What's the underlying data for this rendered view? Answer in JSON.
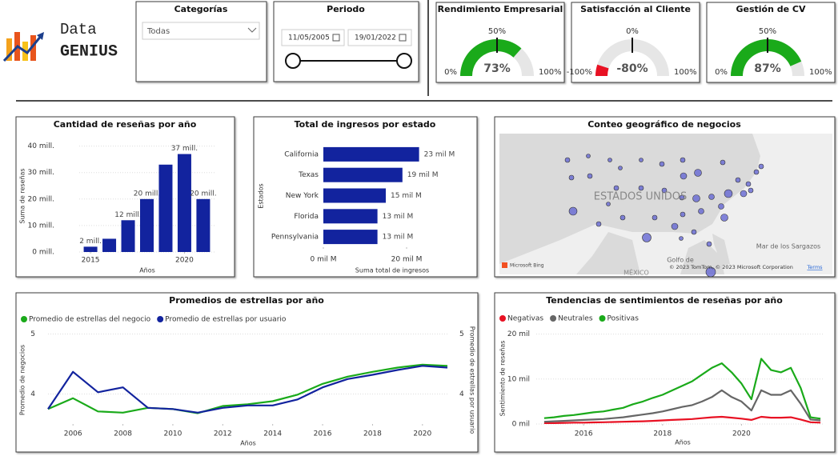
{
  "logo": {
    "line1": "Data",
    "line2": "GENIUS"
  },
  "filters": {
    "category": {
      "title": "Categorías",
      "value": "Todas"
    },
    "period": {
      "title": "Periodo",
      "start": "11/05/2005",
      "end": "19/01/2022"
    }
  },
  "gauges": [
    {
      "title": "Rendimiento Empresarial",
      "value": 73,
      "value_label": "73%",
      "color": "#1aaa1a",
      "min": {
        "value": 0,
        "label": "0%"
      },
      "max": {
        "value": 100,
        "label": "100%"
      },
      "target": {
        "value": 50,
        "label": "50%"
      }
    },
    {
      "title": "Satisfacción al Cliente",
      "value": -80,
      "value_label": "-80%",
      "color": "#e81123",
      "min": {
        "value": -100,
        "label": "-100%"
      },
      "max": {
        "value": 100,
        "label": "100%"
      },
      "target": {
        "value": 0,
        "label": "0%"
      }
    },
    {
      "title": "Gestión de CV",
      "value": 87,
      "value_label": "87%",
      "color": "#1aaa1a",
      "min": {
        "value": 0,
        "label": "0%"
      },
      "max": {
        "value": 100,
        "label": "100%"
      },
      "target": {
        "value": 50,
        "label": "50%"
      }
    }
  ],
  "map": {
    "title": "Conteo geográfico de negocios",
    "country": "ESTADOS UNIDOS",
    "sea": "Mar de los Sargazos",
    "gulf": "Golfo de",
    "mexico": "MÉXICO",
    "provider": "Microsoft Bing",
    "copyright": "© 2023 TomTom, © 2023 Microsoft Corporation",
    "terms": "Terms"
  },
  "chart_data": [
    {
      "type": "bar",
      "title": "Cantidad de reseñas por año",
      "x_label": "Años",
      "y_label": "Suma de reseñas",
      "x": [
        2015,
        2016,
        2017,
        2018,
        2019,
        2020,
        2021
      ],
      "values": [
        2000000,
        5000000,
        12000000,
        20000000,
        33000000,
        37000000,
        20000000
      ],
      "value_labels": [
        "2 mill.",
        null,
        "12 mill.",
        "20 mill.",
        null,
        "37 mill.",
        "20 mill."
      ],
      "color": "#12239e",
      "xlim": [
        2014.4,
        2021.6
      ],
      "xticks": [
        2015,
        2020
      ],
      "ylim": [
        0,
        42000000
      ],
      "yticks": [
        {
          "value": 0,
          "label": "0 mill."
        },
        {
          "value": 10000000,
          "label": "10 mill."
        },
        {
          "value": 20000000,
          "label": "20 mill."
        },
        {
          "value": 30000000,
          "label": "30 mill."
        },
        {
          "value": 40000000,
          "label": "40 mill."
        }
      ],
      "grid": true
    },
    {
      "type": "hbar",
      "title": "Total de ingresos por estado",
      "x_label": "Suma total de ingresos",
      "y_label": "Estados",
      "categories": [
        "California",
        "Texas",
        "New York",
        "Florida",
        "Pennsylvania"
      ],
      "values": [
        23000000000,
        19000000000,
        15000000000,
        13000000000,
        13000000000
      ],
      "value_labels": [
        "23 mil M",
        "19 mil M",
        "15 mil M",
        "13 mil M",
        "13 mil M"
      ],
      "color": "#12239e",
      "xlim": [
        0,
        30000000000
      ],
      "xticks": [
        {
          "value": 0,
          "label": "0 mil M"
        },
        {
          "value": 20000000000,
          "label": "20 mil M"
        }
      ]
    },
    {
      "type": "line",
      "title": "Promedios de estrellas por año",
      "x_label": "Años",
      "y_label": "Promedio de negocios",
      "y2_label": "Promedio de estrellas por usuario",
      "x": [
        2005,
        2006,
        2007,
        2008,
        2009,
        2010,
        2011,
        2012,
        2013,
        2014,
        2015,
        2016,
        2017,
        2018,
        2019,
        2020,
        2021
      ],
      "series": [
        {
          "name": "Promedio de estrellas del negocio",
          "color": "#1aaa1a",
          "values": [
            3.75,
            3.93,
            3.71,
            3.69,
            3.77,
            3.75,
            3.68,
            3.8,
            3.83,
            3.88,
            3.99,
            4.17,
            4.29,
            4.37,
            4.44,
            4.49,
            4.47
          ]
        },
        {
          "name": "Promedio de estrellas por usuario",
          "color": "#12239e",
          "axis": "y2",
          "values": [
            3.75,
            4.37,
            4.03,
            4.11,
            3.77,
            3.75,
            3.69,
            3.77,
            3.81,
            3.81,
            3.91,
            4.11,
            4.25,
            4.32,
            4.4,
            4.47,
            4.44
          ]
        }
      ],
      "xlim": [
        2005,
        2021
      ],
      "xticks": [
        2006,
        2008,
        2010,
        2012,
        2014,
        2016,
        2018,
        2020
      ],
      "ylim": [
        3.5,
        5.1
      ],
      "yticks": [
        4,
        5
      ],
      "y2lim": [
        3.5,
        5.1
      ],
      "y2ticks": [
        4,
        5
      ],
      "grid": true
    },
    {
      "type": "line",
      "title": "Tendencias de sentimientos de reseñas por año",
      "x_label": "Años",
      "y_label": "Sentimiento de reseñas",
      "x": [
        2015,
        2015.25,
        2015.5,
        2015.75,
        2016,
        2016.25,
        2016.5,
        2016.75,
        2017,
        2017.25,
        2017.5,
        2017.75,
        2018,
        2018.25,
        2018.5,
        2018.75,
        2019,
        2019.25,
        2019.5,
        2019.75,
        2020,
        2020.25,
        2020.5,
        2020.75,
        2021,
        2021.25,
        2021.5,
        2021.75,
        2022
      ],
      "series": [
        {
          "name": "Negativas",
          "color": "#e81123",
          "values": [
            200,
            200,
            250,
            300,
            300,
            350,
            400,
            450,
            500,
            550,
            600,
            700,
            800,
            900,
            1000,
            1100,
            1300,
            1500,
            1600,
            1400,
            1200,
            900,
            1600,
            1400,
            1400,
            1500,
            1000,
            400,
            300
          ]
        },
        {
          "name": "Neutrales",
          "color": "#666666",
          "values": [
            500,
            600,
            700,
            800,
            900,
            1000,
            1100,
            1300,
            1500,
            1800,
            2100,
            2400,
            2800,
            3300,
            3800,
            4200,
            5000,
            6000,
            7500,
            6000,
            5000,
            3000,
            7500,
            6500,
            6500,
            7500,
            4500,
            1000,
            800
          ]
        },
        {
          "name": "Positivas",
          "color": "#1aaa1a",
          "values": [
            1300,
            1500,
            1800,
            2000,
            2300,
            2600,
            2800,
            3200,
            3600,
            4400,
            5000,
            5800,
            6500,
            7500,
            8500,
            9500,
            11000,
            12500,
            13500,
            11500,
            9000,
            5500,
            14500,
            12000,
            11500,
            12500,
            8000,
            1500,
            1200
          ]
        }
      ],
      "xlim": [
        2014.8,
        2022.1
      ],
      "xticks": [
        2016,
        2018,
        2020
      ],
      "ylim": [
        0,
        21000
      ],
      "yticks": [
        {
          "value": 0,
          "label": "0 mil"
        },
        {
          "value": 10000,
          "label": "10 mil"
        },
        {
          "value": 20000,
          "label": "20 mil"
        }
      ],
      "grid": true
    }
  ]
}
